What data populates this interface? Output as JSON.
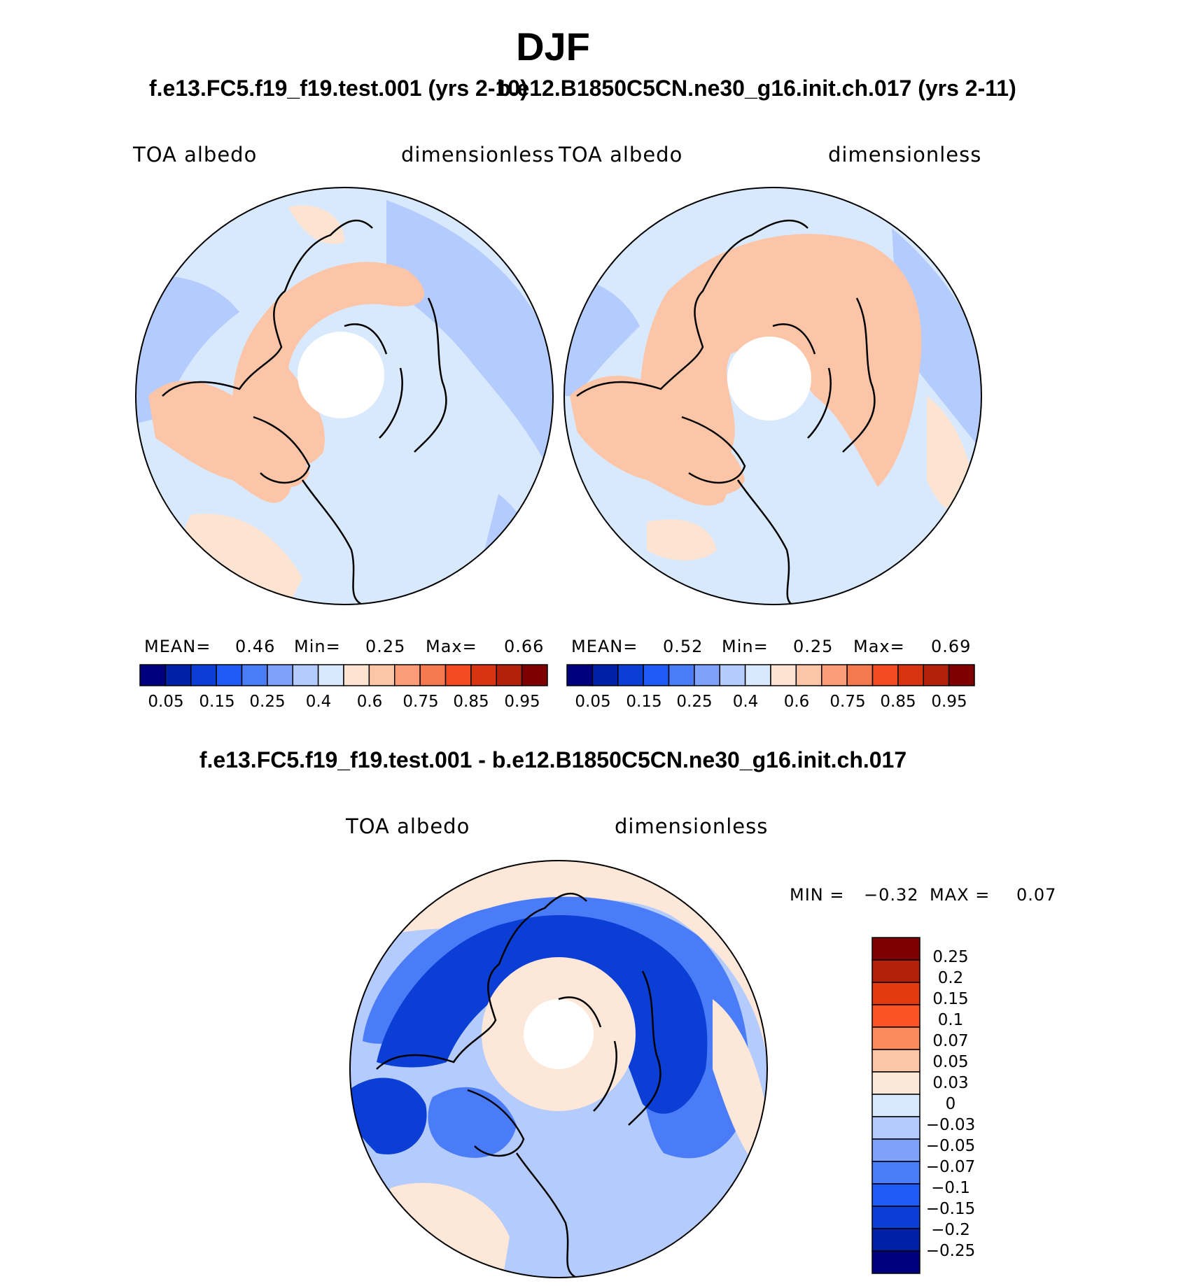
{
  "figure": {
    "season_title": "DJF",
    "case1_title": "f.e13.FC5.f19_f19.test.001 (yrs 2-10)",
    "case2_title": "b.e12.B1850C5CN.ne30_g16.init.ch.017 (yrs 2-11)",
    "difference_title": "f.e13.FC5.f19_f19.test.001 - b.e12.B1850C5CN.ne30_g16.init.ch.017"
  },
  "panels": [
    {
      "variable": "TOA  albedo",
      "units": "dimensionless",
      "mean_label": "MEAN=",
      "mean": "0.46",
      "min_label": "Min=",
      "min": "0.25",
      "max_label": "Max=",
      "max": "0.66"
    },
    {
      "variable": "TOA  albedo",
      "units": "dimensionless",
      "mean_label": "MEAN=",
      "mean": "0.52",
      "min_label": "Min=",
      "min": "0.25",
      "max_label": "Max=",
      "max": "0.69"
    }
  ],
  "difference_panel": {
    "variable": "TOA  albedo",
    "units": "dimensionless",
    "min_label": "MIN =",
    "min": "−0.32",
    "max_label": "MAX =",
    "max": "0.07"
  },
  "albedo_colorbar": {
    "colors": [
      "#00007f",
      "#0020a8",
      "#0a3ed4",
      "#1e5cf5",
      "#4a7cf8",
      "#7ea1fb",
      "#b4cbfd",
      "#d8e9fd",
      "#fde4d2",
      "#fcc5a8",
      "#fc9c79",
      "#f5794e",
      "#f24a23",
      "#d63510",
      "#b4210a",
      "#7f0000"
    ],
    "tick_labels": [
      "0.05",
      "0.15",
      "0.25",
      "0.4",
      "0.6",
      "0.75",
      "0.85",
      "0.95"
    ]
  },
  "difference_colorbar": {
    "colors": [
      "#7f0000",
      "#b4210a",
      "#e33a0f",
      "#fb5424",
      "#fb8a5d",
      "#fcc5a8",
      "#fde7d8",
      "#d8e9fd",
      "#b4cbfd",
      "#7ea1fb",
      "#4a7cf8",
      "#1e5cf5",
      "#0a3ed4",
      "#0020a8",
      "#00007f"
    ],
    "tick_labels": [
      "0.25",
      "0.2",
      "0.15",
      "0.1",
      "0.07",
      "0.05",
      "0.03",
      "0",
      "−0.03",
      "−0.05",
      "−0.07",
      "−0.1",
      "−0.15",
      "−0.2",
      "−0.25"
    ]
  },
  "map_colors": {
    "ocean_low": "#b4cbfd",
    "ocean_mid": "#d8e9fd",
    "land_high": "#fcc5a8",
    "land_mid": "#fde4d2",
    "diff_neutral": "#fde7d8",
    "diff_strong": "#0a3ed4",
    "diff_medium": "#4a7cf8",
    "diff_light": "#b4cbfd",
    "polar_gap": "#ffffff",
    "coast": "#000000"
  }
}
